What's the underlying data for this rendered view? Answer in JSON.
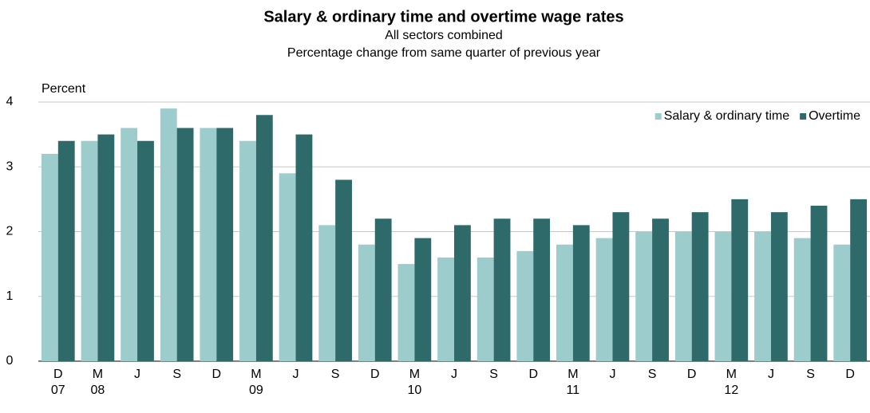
{
  "chart_data": {
    "type": "bar",
    "title": "Salary & ordinary time and overtime wage rates",
    "subtitle": "All sectors combined",
    "subtitle2": "Percentage change from same quarter of previous year",
    "y_label": "Percent",
    "categories": [
      [
        "D",
        "07"
      ],
      [
        "M",
        "08"
      ],
      [
        "J"
      ],
      [
        "S"
      ],
      [
        "D"
      ],
      [
        "M",
        "09"
      ],
      [
        "J"
      ],
      [
        "S"
      ],
      [
        "D"
      ],
      [
        "M",
        "10"
      ],
      [
        "J"
      ],
      [
        "S"
      ],
      [
        "D"
      ],
      [
        "M",
        "11"
      ],
      [
        "J"
      ],
      [
        "S"
      ],
      [
        "D"
      ],
      [
        "M",
        "12"
      ],
      [
        "J"
      ],
      [
        "S"
      ],
      [
        "D"
      ]
    ],
    "series": [
      {
        "name": "Salary & ordinary time",
        "color": "#9ccccc",
        "values": [
          3.2,
          3.4,
          3.6,
          3.9,
          3.6,
          3.4,
          2.9,
          2.1,
          1.8,
          1.5,
          1.6,
          1.6,
          1.7,
          1.8,
          1.9,
          2.0,
          2.0,
          2.0,
          2.0,
          1.9,
          1.8
        ]
      },
      {
        "name": "Overtime",
        "color": "#2f6a6a",
        "values": [
          3.4,
          3.5,
          3.4,
          3.6,
          3.6,
          3.8,
          3.5,
          2.8,
          2.2,
          1.9,
          2.1,
          2.2,
          2.2,
          2.1,
          2.3,
          2.2,
          2.3,
          2.5,
          2.3,
          2.4,
          2.5
        ]
      }
    ],
    "ylim": [
      0,
      4
    ],
    "yticks": [
      0,
      1,
      2,
      3,
      4
    ],
    "grid": true,
    "legend": "top-right"
  }
}
